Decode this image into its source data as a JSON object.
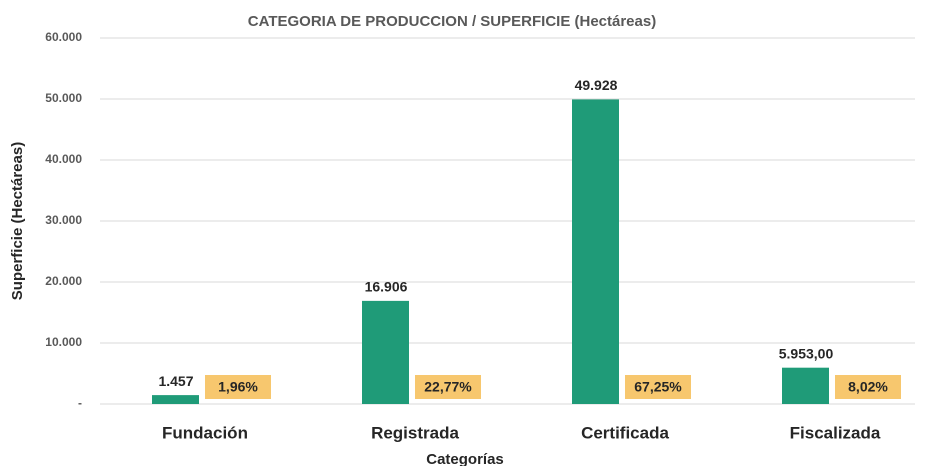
{
  "chart_data": {
    "type": "bar",
    "title": "CATEGORIA DE PRODUCCION / SUPERFICIE (Hectáreas)",
    "x_label": "Categorías",
    "y_label": "Superficie (Hectáreas)",
    "categories": [
      "Fundación",
      "Registrada",
      "Certificada",
      "Fiscalizada"
    ],
    "values": [
      1457,
      16906,
      49928,
      5953
    ],
    "value_labels": [
      "1.457",
      "16.906",
      "49.928",
      "5.953,00"
    ],
    "percent_values": [
      1.96,
      22.77,
      67.25,
      8.02
    ],
    "percent_labels": [
      "1,96%",
      "22,77%",
      "67,25%",
      "8,02%"
    ],
    "color": "#1f9b78",
    "percent_color": "#f7c76e",
    "ylim": [
      0,
      60000
    ],
    "yticks": [
      {
        "value": 0,
        "label": "-"
      },
      {
        "value": 10000,
        "label": "10.000"
      },
      {
        "value": 20000,
        "label": "20.000"
      },
      {
        "value": 30000,
        "label": "30.000"
      },
      {
        "value": 40000,
        "label": "40.000"
      },
      {
        "value": 50000,
        "label": "50.000"
      },
      {
        "value": 60000,
        "label": "60.000"
      }
    ],
    "grid": true
  }
}
